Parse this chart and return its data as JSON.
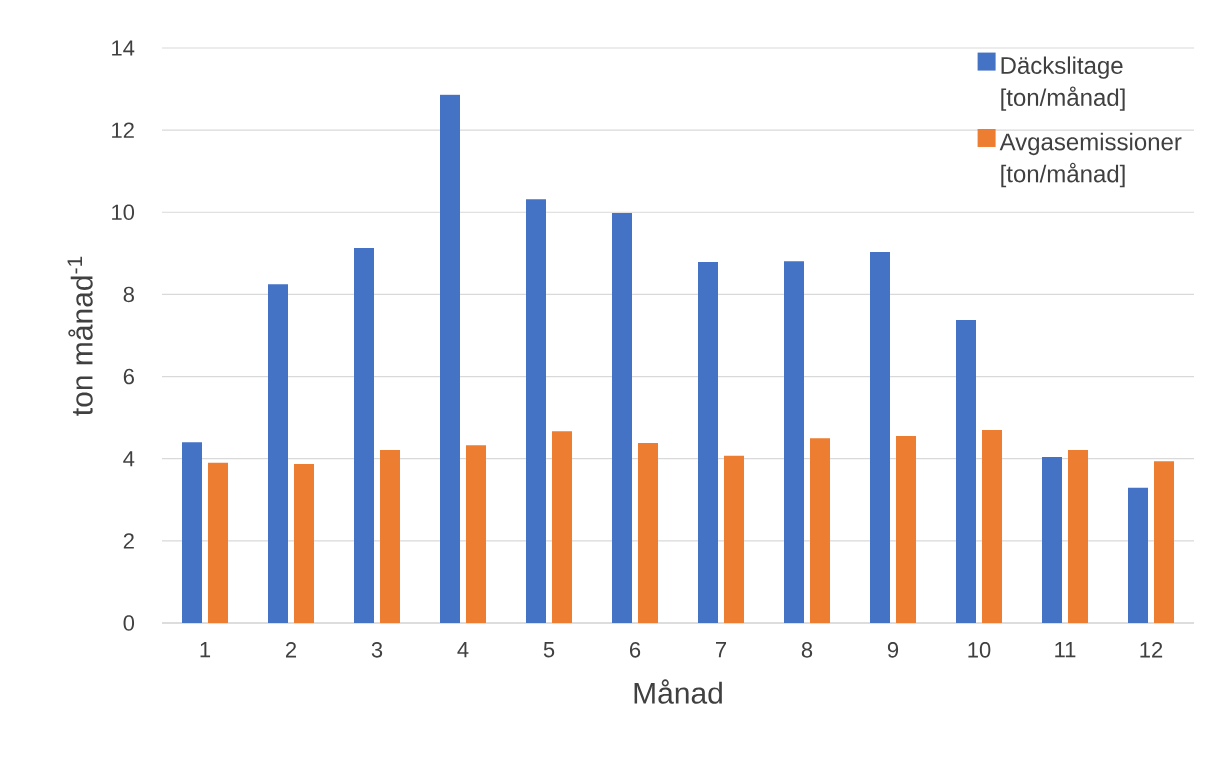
{
  "chart_data": {
    "type": "bar",
    "xlabel": "Månad",
    "ylabel": "ton månad$^{-1}$",
    "categories": [
      "1",
      "2",
      "3",
      "4",
      "5",
      "6",
      "7",
      "8",
      "9",
      "10",
      "11",
      "12"
    ],
    "series": [
      {
        "name": "Däckslitage [ton/månad]",
        "color": "#4472c4",
        "values": [
          4.4,
          8.25,
          9.13,
          12.86,
          10.32,
          9.98,
          8.79,
          8.81,
          9.03,
          7.38,
          4.04,
          3.29
        ]
      },
      {
        "name": "Avgasemissioner [ton/månad]",
        "color": "#ed7d31",
        "values": [
          3.9,
          3.87,
          4.21,
          4.33,
          4.67,
          4.38,
          4.07,
          4.5,
          4.55,
          4.7,
          4.21,
          3.94
        ]
      }
    ],
    "ylim": [
      0,
      14
    ],
    "yticks": [
      0,
      2,
      4,
      6,
      8,
      10,
      12,
      14
    ],
    "grid": "y",
    "legend": "top right"
  }
}
